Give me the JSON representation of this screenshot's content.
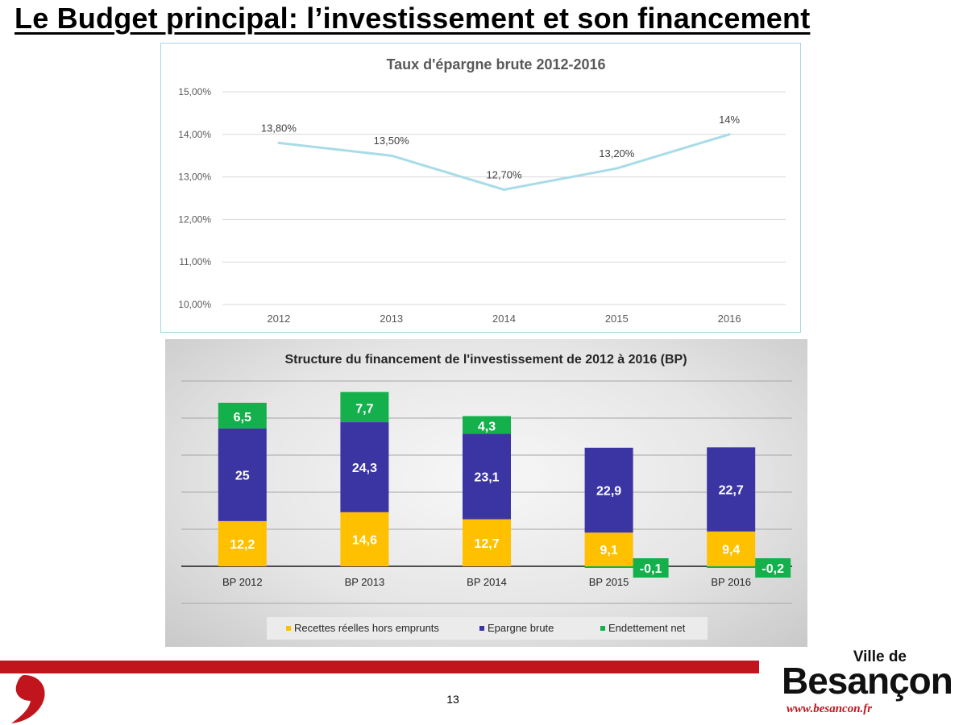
{
  "slide": {
    "title": "Le Budget principal: l’investissement et son financement",
    "page_number": "13"
  },
  "logo": {
    "line1": "Ville de",
    "line2": "Besançon",
    "line3": "www.besancon.fr",
    "accent_color": "#c0151d"
  },
  "chart_data": [
    {
      "type": "line",
      "title": "Taux d'épargne brute 2012-2016",
      "x": [
        "2012",
        "2013",
        "2014",
        "2015",
        "2016"
      ],
      "series": [
        {
          "values": [
            13.8,
            13.5,
            12.7,
            13.2,
            14.0
          ],
          "color": "#a8dce6"
        }
      ],
      "data_labels": [
        "13,80%",
        "13,50%",
        "12,70%",
        "13,20%",
        "14%"
      ],
      "ylim": [
        10,
        15
      ],
      "yticks": [
        10,
        11,
        12,
        13,
        14,
        15
      ],
      "ytick_labels": [
        "10,00%",
        "11,00%",
        "12,00%",
        "13,00%",
        "14,00%",
        "15,00%"
      ],
      "grid": true
    },
    {
      "type": "bar",
      "stacked": true,
      "title": "Structure du financement de l'investissement de 2012 à 2016 (BP)",
      "categories": [
        "BP 2012",
        "BP 2013",
        "BP 2014",
        "BP 2015",
        "BP 2016"
      ],
      "series": [
        {
          "name": "Recettes réelles hors emprunts",
          "values": [
            12.2,
            14.6,
            12.7,
            9.1,
            9.4
          ],
          "color": "#ffc000"
        },
        {
          "name": "Epargne brute",
          "values": [
            25,
            24.3,
            23.1,
            22.9,
            22.7
          ],
          "color": "#3b35a3"
        },
        {
          "name": "Endettement net",
          "values": [
            6.5,
            7.7,
            4.3,
            -0.1,
            -0.2
          ],
          "color": "#14b04c"
        }
      ],
      "data_labels": [
        [
          "12,2",
          "14,6",
          "12,7",
          "9,1",
          "9,4"
        ],
        [
          "25",
          "24,3",
          "23,1",
          "22,9",
          "22,7"
        ],
        [
          "6,5",
          "7,7",
          "4,3",
          "-0,1",
          "-0,2"
        ]
      ],
      "legend_position": "bottom",
      "grid": true
    }
  ]
}
